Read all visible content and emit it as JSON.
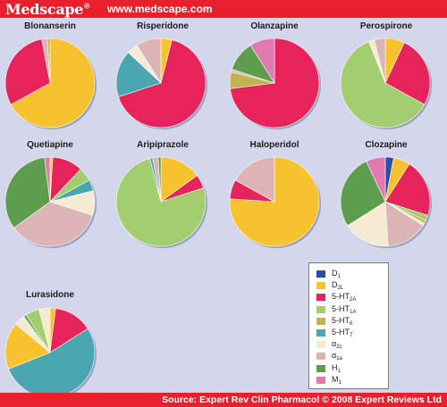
{
  "header": {
    "brand": "Medscape",
    "brand_mark": "®",
    "url": "www.medscape.com"
  },
  "footer": {
    "source": "Source: Expert Rev Clin Pharmacol © 2008 Expert Reviews Ltd"
  },
  "chart_data": {
    "type": "pie",
    "legend": [
      {
        "key": "D1",
        "label": "D",
        "sub": "1",
        "color": "#2b4ea3"
      },
      {
        "key": "D2L",
        "label": "D",
        "sub": "2L",
        "color": "#f6c22d"
      },
      {
        "key": "5HT2A",
        "label": "5-HT",
        "sub": "2A",
        "color": "#e6245b"
      },
      {
        "key": "5HT1A",
        "label": "5-HT",
        "sub": "1A",
        "color": "#a2ce6f"
      },
      {
        "key": "5HT6",
        "label": "5-HT",
        "sub": "6",
        "color": "#c1b350"
      },
      {
        "key": "5HT7",
        "label": "5-HT",
        "sub": "7",
        "color": "#4aa6b0"
      },
      {
        "key": "a2c",
        "label": "α",
        "sub": "2c",
        "color": "#f6ead2"
      },
      {
        "key": "a1a",
        "label": "α",
        "sub": "1a",
        "color": "#dcb4b6"
      },
      {
        "key": "H1",
        "label": "H",
        "sub": "1",
        "color": "#5e9d4e"
      },
      {
        "key": "M1",
        "label": "M",
        "sub": "1",
        "color": "#e07ab0"
      }
    ],
    "pies": [
      {
        "name": "Blonanserin",
        "slices": [
          {
            "key": "D2L",
            "value": 67
          },
          {
            "key": "5HT2A",
            "value": 30
          },
          {
            "key": "a1a",
            "value": 2
          },
          {
            "key": "5HT6",
            "value": 1
          }
        ]
      },
      {
        "name": "Risperidone",
        "slices": [
          {
            "key": "D2L",
            "value": 4
          },
          {
            "key": "5HT2A",
            "value": 66
          },
          {
            "key": "5HT7",
            "value": 17
          },
          {
            "key": "a2c",
            "value": 4
          },
          {
            "key": "a1a",
            "value": 9
          }
        ]
      },
      {
        "name": "Olanzapine",
        "slices": [
          {
            "key": "5HT2A",
            "value": 73
          },
          {
            "key": "5HT6",
            "value": 6
          },
          {
            "key": "a1a",
            "value": 1
          },
          {
            "key": "H1",
            "value": 11
          },
          {
            "key": "M1",
            "value": 9
          }
        ]
      },
      {
        "name": "Perospirone",
        "slices": [
          {
            "key": "D2L",
            "value": 7
          },
          {
            "key": "5HT2A",
            "value": 26
          },
          {
            "key": "5HT1A",
            "value": 61
          },
          {
            "key": "a2c",
            "value": 2
          },
          {
            "key": "a1a",
            "value": 4
          }
        ]
      },
      {
        "name": "Quetiapine",
        "slices": [
          {
            "key": "D2L",
            "value": 1
          },
          {
            "key": "5HT2A",
            "value": 11
          },
          {
            "key": "5HT1A",
            "value": 5
          },
          {
            "key": "5HT7",
            "value": 4
          },
          {
            "key": "a2c",
            "value": 9
          },
          {
            "key": "a1a",
            "value": 35
          },
          {
            "key": "H1",
            "value": 33
          },
          {
            "key": "M1",
            "value": 2
          }
        ]
      },
      {
        "name": "Aripiprazole",
        "slices": [
          {
            "key": "D2L",
            "value": 15
          },
          {
            "key": "5HT2A",
            "value": 5
          },
          {
            "key": "5HT1A",
            "value": 76
          },
          {
            "key": "5HT7",
            "value": 1
          },
          {
            "key": "a1a",
            "value": 2
          },
          {
            "key": "H1",
            "value": 1
          }
        ]
      },
      {
        "name": "Haloperidol",
        "slices": [
          {
            "key": "D2L",
            "value": 76
          },
          {
            "key": "5HT2A",
            "value": 7
          },
          {
            "key": "a1a",
            "value": 17
          }
        ]
      },
      {
        "name": "Clozapine",
        "slices": [
          {
            "key": "D1",
            "value": 3
          },
          {
            "key": "D2L",
            "value": 6
          },
          {
            "key": "5HT2A",
            "value": 21
          },
          {
            "key": "5HT1A",
            "value": 2
          },
          {
            "key": "5HT6",
            "value": 1
          },
          {
            "key": "a2c",
            "value": 1
          },
          {
            "key": "a1a",
            "value": 15
          },
          {
            "key": "a2c",
            "value": 17
          },
          {
            "key": "H1",
            "value": 27
          },
          {
            "key": "M1",
            "value": 7
          }
        ]
      },
      {
        "name": "Lurasidone",
        "slices": [
          {
            "key": "D2L",
            "value": 2
          },
          {
            "key": "5HT2A",
            "value": 14
          },
          {
            "key": "5HT7",
            "value": 53
          },
          {
            "key": "D2L",
            "value": 17
          },
          {
            "key": "a2c",
            "value": 4
          },
          {
            "key": "H1",
            "value": 1
          },
          {
            "key": "5HT1A",
            "value": 5
          },
          {
            "key": "a2c",
            "value": 4
          }
        ]
      }
    ]
  }
}
